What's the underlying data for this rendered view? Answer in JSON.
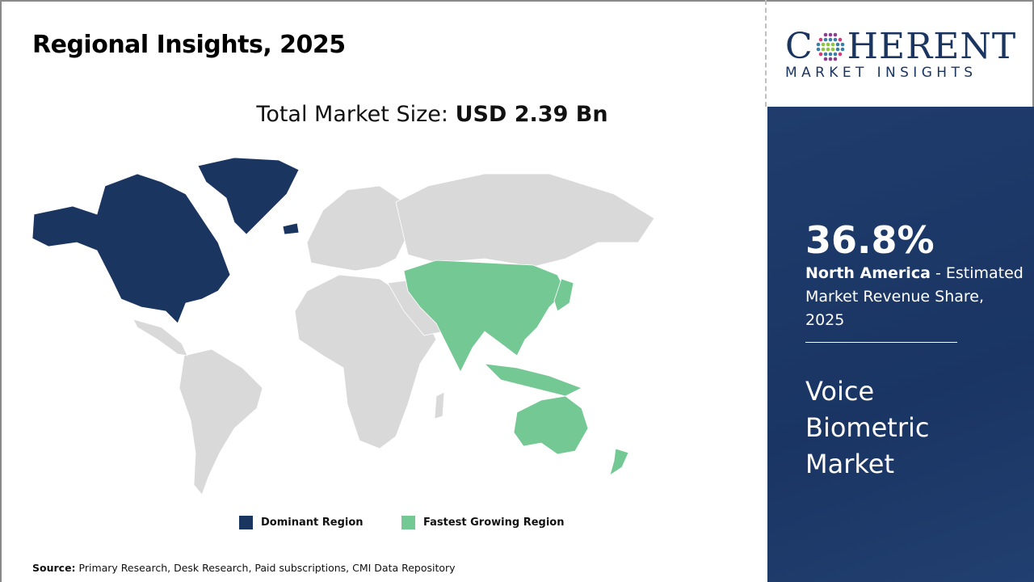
{
  "header": {
    "title": "Regional Insights, 2025"
  },
  "market_size": {
    "label": "Total Market Size: ",
    "value": "USD 2.39 Bn"
  },
  "legend": [
    {
      "label": "Dominant Region",
      "color": "#1b3561"
    },
    {
      "label": "Fastest Growing Region",
      "color": "#74c893"
    }
  ],
  "map": {
    "base_color": "#d9d9d9",
    "dominant_region": "North America",
    "fastest_growing_region": "Asia Pacific"
  },
  "source": {
    "label": "Source:",
    "text": " Primary Research, Desk Research, Paid subscriptions, CMI Data Repository"
  },
  "logo": {
    "name_pre": "C",
    "name_post": "HERENT",
    "tagline": "MARKET INSIGHTS"
  },
  "panel": {
    "share": "36.8%",
    "region": "North America",
    "description": " - Estimated Market Revenue Share, 2025",
    "market_name": "Voice Biometric Market",
    "bg_color": "#1d386a"
  }
}
